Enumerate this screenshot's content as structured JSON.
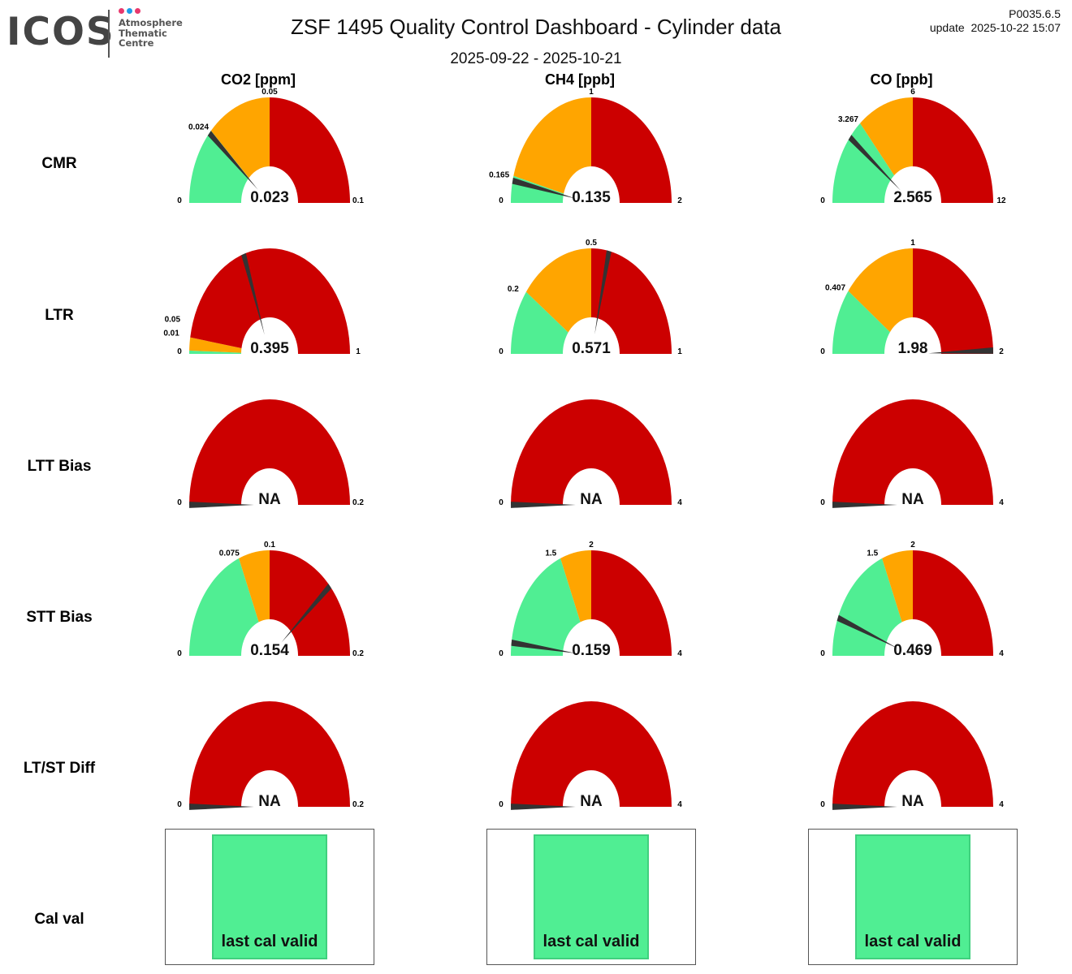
{
  "header": {
    "logo": {
      "name": "ICOS",
      "sub": [
        "Atmosphere",
        "Thematic",
        "Centre"
      ],
      "dots": [
        "#E8386D",
        "#1E9CE8",
        "#E8386D"
      ]
    },
    "title": "ZSF 1495 Quality Control Dashboard - Cylinder data",
    "subtitle": "2025-09-22 - 2025-10-21",
    "version": "P0035.6.5",
    "update": "update  2025-10-22 15:07"
  },
  "colors": {
    "green": "#50EE93",
    "orange": "#FFA500",
    "red": "#CC0000",
    "needle": "#333333"
  },
  "columns": [
    "CO2 [ppm]",
    "CH4 [ppb]",
    "CO [ppb]"
  ],
  "rows": [
    "CMR",
    "LTR",
    "LTT Bias",
    "STT Bias",
    "LT/ST Diff",
    "Cal val"
  ],
  "gauges": [
    [
      {
        "min": "0",
        "max": "0.1",
        "green": "0.024",
        "orange": "0.05",
        "value": "0.023"
      },
      {
        "min": "0",
        "max": "2",
        "green": "0.165",
        "orange": "1",
        "value": "0.135"
      },
      {
        "min": "0",
        "max": "12",
        "green": "3.267",
        "orange": "6",
        "value": "2.565"
      }
    ],
    [
      {
        "min": "0",
        "max": "1",
        "green": "0.01",
        "orange": "0.05",
        "value": "0.395"
      },
      {
        "min": "0",
        "max": "1",
        "green": "0.2",
        "orange": "0.5",
        "value": "0.571"
      },
      {
        "min": "0",
        "max": "2",
        "green": "0.407",
        "orange": "1",
        "value": "1.98"
      }
    ],
    [
      {
        "min": "0",
        "max": "0.2",
        "green": null,
        "orange": null,
        "value": "NA"
      },
      {
        "min": "0",
        "max": "4",
        "green": null,
        "orange": null,
        "value": "NA"
      },
      {
        "min": "0",
        "max": "4",
        "green": null,
        "orange": null,
        "value": "NA"
      }
    ],
    [
      {
        "min": "0",
        "max": "0.2",
        "green": "0.075",
        "orange": "0.1",
        "value": "0.154"
      },
      {
        "min": "0",
        "max": "4",
        "green": "1.5",
        "orange": "2",
        "value": "0.159"
      },
      {
        "min": "0",
        "max": "4",
        "green": "1.5",
        "orange": "2",
        "value": "0.469"
      }
    ],
    [
      {
        "min": "0",
        "max": "0.2",
        "green": null,
        "orange": null,
        "value": "NA"
      },
      {
        "min": "0",
        "max": "4",
        "green": null,
        "orange": null,
        "value": "NA"
      },
      {
        "min": "0",
        "max": "4",
        "green": null,
        "orange": null,
        "value": "NA"
      }
    ]
  ],
  "calval": [
    "last cal valid",
    "last cal valid",
    "last cal valid"
  ]
}
